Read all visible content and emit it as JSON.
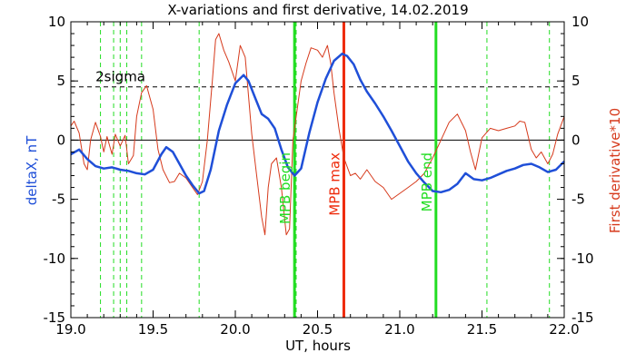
{
  "chart_data": {
    "type": "line",
    "title": "X-variations and first derivative, 14.02.2019",
    "xlabel": "UT, hours",
    "ylabel_left": "deltaX, nT",
    "ylabel_right": "First derivative*10",
    "xlim": [
      19.0,
      22.0
    ],
    "ylim": [
      -15,
      10
    ],
    "ylim_right": [
      -15,
      10
    ],
    "x_ticks": [
      "19.0",
      "19.5",
      "20.0",
      "20.5",
      "21.0",
      "21.5",
      "22.0"
    ],
    "y_ticks": [
      "10",
      "5",
      "0",
      "-5",
      "-10",
      "-15"
    ],
    "y_ticks_right": [
      "10",
      "5",
      "0",
      "-5",
      "-10",
      "-15"
    ],
    "colors": {
      "deltaX": "#1f4fd8",
      "derivative": "#d63a1c",
      "mpb": "#22dd22",
      "mpb_max": "#ee2a0a",
      "sigma": "#000000"
    },
    "sigma_level": 4.5,
    "sigma_label": "2sigma",
    "zero_line": 0,
    "dashed_vlines": [
      19.18,
      19.26,
      19.3,
      19.34,
      19.43,
      19.78,
      20.37,
      21.53,
      21.91
    ],
    "markers": [
      {
        "label": "MPB begin",
        "x": 20.36,
        "color": "#22dd22"
      },
      {
        "label": "MPB max",
        "x": 20.66,
        "color": "#ee2a0a"
      },
      {
        "label": "MPB end",
        "x": 21.22,
        "color": "#22dd22"
      }
    ],
    "series": [
      {
        "name": "deltaX",
        "axis": "left",
        "x": [
          19.0,
          19.05,
          19.1,
          19.15,
          19.2,
          19.25,
          19.3,
          19.35,
          19.4,
          19.45,
          19.5,
          19.55,
          19.58,
          19.62,
          19.66,
          19.7,
          19.74,
          19.78,
          19.81,
          19.85,
          19.9,
          19.95,
          20.0,
          20.05,
          20.08,
          20.12,
          20.16,
          20.2,
          20.24,
          20.28,
          20.32,
          20.36,
          20.4,
          20.45,
          20.5,
          20.55,
          20.6,
          20.65,
          20.68,
          20.72,
          20.76,
          20.8,
          20.85,
          20.9,
          20.95,
          21.0,
          21.05,
          21.1,
          21.15,
          21.2,
          21.25,
          21.3,
          21.35,
          21.4,
          21.45,
          21.5,
          21.55,
          21.6,
          21.65,
          21.7,
          21.75,
          21.8,
          21.85,
          21.9,
          21.95,
          22.0
        ],
        "values": [
          -1.2,
          -0.8,
          -1.6,
          -2.2,
          -2.4,
          -2.3,
          -2.5,
          -2.6,
          -2.8,
          -2.9,
          -2.5,
          -1.2,
          -0.6,
          -1.0,
          -2.0,
          -3.0,
          -3.8,
          -4.5,
          -4.3,
          -2.5,
          0.8,
          3.0,
          4.8,
          5.5,
          5.0,
          3.6,
          2.2,
          1.8,
          1.0,
          -0.8,
          -2.3,
          -3.0,
          -2.4,
          0.6,
          3.2,
          5.2,
          6.7,
          7.3,
          7.1,
          6.4,
          5.1,
          4.1,
          3.1,
          2.0,
          0.8,
          -0.5,
          -1.8,
          -2.8,
          -3.6,
          -4.3,
          -4.4,
          -4.2,
          -3.7,
          -2.8,
          -3.3,
          -3.4,
          -3.2,
          -2.9,
          -2.6,
          -2.4,
          -2.1,
          -2.0,
          -2.3,
          -2.7,
          -2.5,
          -1.8
        ]
      },
      {
        "name": "First derivative*10",
        "axis": "right",
        "x": [
          19.0,
          19.02,
          19.05,
          19.08,
          19.1,
          19.12,
          19.15,
          19.18,
          19.2,
          19.22,
          19.25,
          19.27,
          19.3,
          19.33,
          19.35,
          19.38,
          19.4,
          19.43,
          19.46,
          19.5,
          19.53,
          19.56,
          19.6,
          19.63,
          19.66,
          19.7,
          19.74,
          19.77,
          19.8,
          19.83,
          19.86,
          19.88,
          19.9,
          19.93,
          19.96,
          20.0,
          20.03,
          20.06,
          20.1,
          20.13,
          20.16,
          20.18,
          20.2,
          20.22,
          20.25,
          20.28,
          20.31,
          20.33,
          20.35,
          20.38,
          20.4,
          20.43,
          20.46,
          20.5,
          20.53,
          20.56,
          20.58,
          20.6,
          20.63,
          20.66,
          20.7,
          20.73,
          20.76,
          20.8,
          20.85,
          20.9,
          20.95,
          21.0,
          21.05,
          21.1,
          21.15,
          21.2,
          21.25,
          21.3,
          21.35,
          21.4,
          21.43,
          21.46,
          21.5,
          21.55,
          21.6,
          21.65,
          21.7,
          21.73,
          21.76,
          21.8,
          21.83,
          21.86,
          21.9,
          21.93,
          21.96,
          22.0
        ],
        "values": [
          1.2,
          1.6,
          0.6,
          -2.0,
          -2.5,
          0.0,
          1.5,
          0.3,
          -1.0,
          0.3,
          -1.2,
          0.5,
          -0.5,
          0.4,
          -2.0,
          -1.3,
          2.0,
          4.0,
          4.6,
          2.6,
          -0.8,
          -2.5,
          -3.6,
          -3.5,
          -2.8,
          -3.2,
          -4.0,
          -4.6,
          -3.5,
          0.0,
          5.0,
          8.5,
          9.0,
          7.6,
          6.6,
          5.0,
          8.0,
          7.0,
          0.5,
          -3.0,
          -6.5,
          -8.0,
          -4.0,
          -2.0,
          -1.5,
          -4.0,
          -8.0,
          -7.5,
          0.0,
          3.0,
          5.0,
          6.5,
          7.8,
          7.6,
          7.0,
          8.0,
          6.5,
          4.0,
          1.0,
          -1.5,
          -3.0,
          -2.8,
          -3.3,
          -2.5,
          -3.5,
          -4.0,
          -5.0,
          -4.5,
          -4.0,
          -3.5,
          -2.8,
          -1.5,
          0.0,
          1.5,
          2.2,
          0.8,
          -1.0,
          -2.5,
          0.2,
          1.0,
          0.8,
          1.0,
          1.2,
          1.6,
          1.5,
          -0.8,
          -1.5,
          -1.0,
          -2.0,
          -1.2,
          0.5,
          2.0
        ]
      }
    ]
  }
}
